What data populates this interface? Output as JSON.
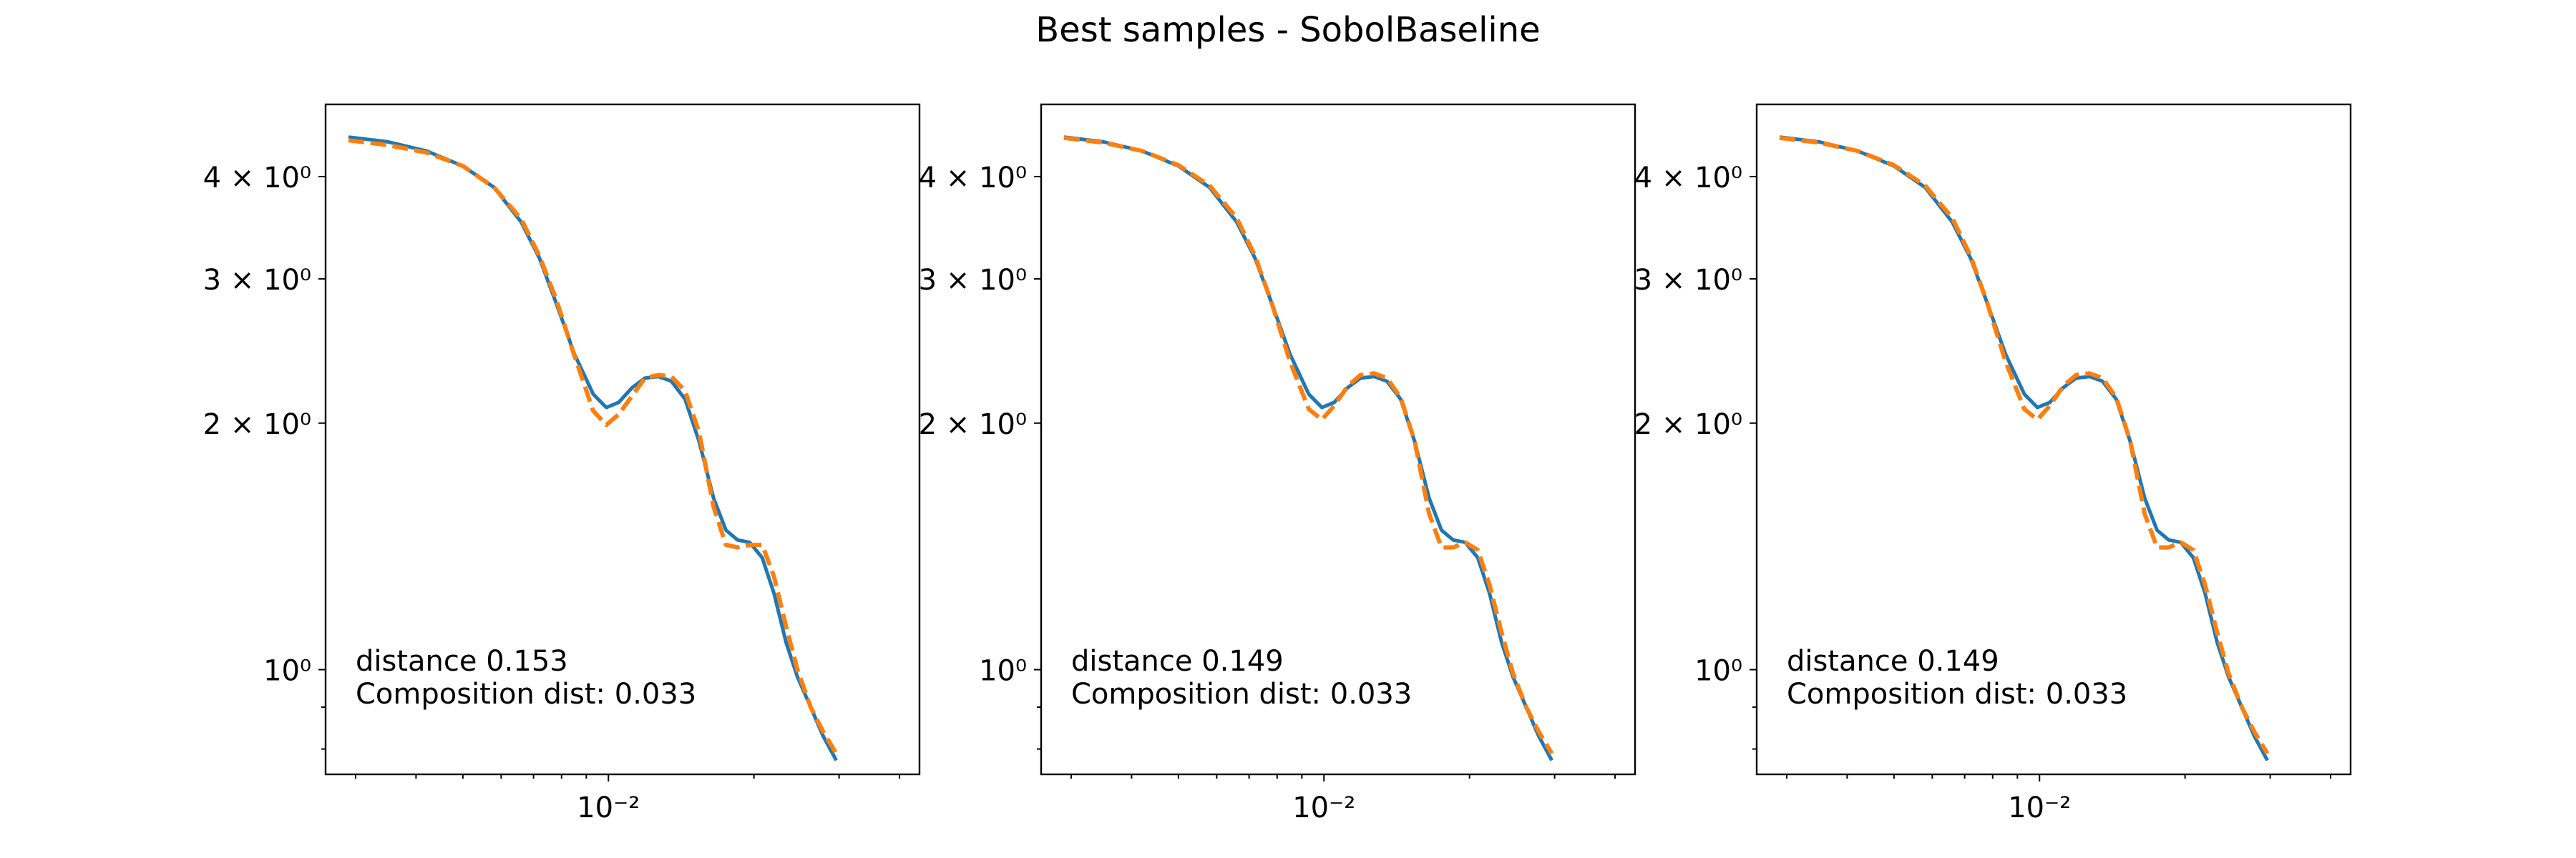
{
  "figure": {
    "title": "Best samples - SobolBaseline"
  },
  "chart_data": [
    {
      "type": "line",
      "xscale": "log",
      "yscale": "log",
      "xlim": [
        0.0026,
        0.044
      ],
      "ylim": [
        0.745,
        4.9
      ],
      "xticks_major": [
        {
          "value": 0.01,
          "label": "10⁻²"
        }
      ],
      "xticks_minor": [
        0.003,
        0.004,
        0.005,
        0.006,
        0.007,
        0.008,
        0.009,
        0.02,
        0.03,
        0.04
      ],
      "yticks": [
        {
          "value": 4,
          "label": "4 × 10⁰"
        },
        {
          "value": 3,
          "label": "3 × 10⁰"
        },
        {
          "value": 2,
          "label": "2 × 10⁰"
        },
        {
          "value": 1,
          "label": "10⁰"
        }
      ],
      "yticks_minor": [
        0.9,
        0.8
      ],
      "series": [
        {
          "style": "solid",
          "color": "#1f77b4",
          "points": [
            [
              0.0029,
              4.47
            ],
            [
              0.0035,
              4.41
            ],
            [
              0.0042,
              4.3
            ],
            [
              0.005,
              4.12
            ],
            [
              0.0058,
              3.88
            ],
            [
              0.0066,
              3.52
            ],
            [
              0.0072,
              3.18
            ],
            [
              0.0078,
              2.8
            ],
            [
              0.0085,
              2.43
            ],
            [
              0.0093,
              2.17
            ],
            [
              0.0099,
              2.09
            ],
            [
              0.0105,
              2.12
            ],
            [
              0.0112,
              2.21
            ],
            [
              0.0119,
              2.27
            ],
            [
              0.0127,
              2.28
            ],
            [
              0.0135,
              2.25
            ],
            [
              0.0144,
              2.14
            ],
            [
              0.0154,
              1.9
            ],
            [
              0.0165,
              1.62
            ],
            [
              0.0175,
              1.48
            ],
            [
              0.0185,
              1.44
            ],
            [
              0.0196,
              1.43
            ],
            [
              0.0208,
              1.37
            ],
            [
              0.022,
              1.24
            ],
            [
              0.0233,
              1.08
            ],
            [
              0.0246,
              0.98
            ],
            [
              0.0262,
              0.9
            ],
            [
              0.0278,
              0.83
            ],
            [
              0.0296,
              0.775
            ]
          ]
        },
        {
          "style": "dashed",
          "color": "#ff7f0e",
          "points": [
            [
              0.0029,
              4.43
            ],
            [
              0.0035,
              4.37
            ],
            [
              0.0042,
              4.28
            ],
            [
              0.005,
              4.12
            ],
            [
              0.0058,
              3.88
            ],
            [
              0.0066,
              3.55
            ],
            [
              0.0072,
              3.2
            ],
            [
              0.0078,
              2.83
            ],
            [
              0.0085,
              2.42
            ],
            [
              0.0093,
              2.07
            ],
            [
              0.0099,
              1.99
            ],
            [
              0.0105,
              2.05
            ],
            [
              0.0112,
              2.16
            ],
            [
              0.0119,
              2.27
            ],
            [
              0.0127,
              2.29
            ],
            [
              0.0135,
              2.28
            ],
            [
              0.0144,
              2.19
            ],
            [
              0.0154,
              1.95
            ],
            [
              0.0165,
              1.58
            ],
            [
              0.0175,
              1.42
            ],
            [
              0.0185,
              1.41
            ],
            [
              0.0196,
              1.42
            ],
            [
              0.0208,
              1.42
            ],
            [
              0.022,
              1.3
            ],
            [
              0.0233,
              1.13
            ],
            [
              0.0246,
              1.0
            ],
            [
              0.0262,
              0.9
            ],
            [
              0.0278,
              0.84
            ],
            [
              0.0296,
              0.79
            ]
          ]
        }
      ],
      "annotations": [
        "distance 0.153",
        "Composition dist: 0.033"
      ]
    },
    {
      "type": "line",
      "xscale": "log",
      "yscale": "log",
      "xlim": [
        0.0026,
        0.044
      ],
      "ylim": [
        0.745,
        4.9
      ],
      "xticks_major": [
        {
          "value": 0.01,
          "label": "10⁻²"
        }
      ],
      "xticks_minor": [
        0.003,
        0.004,
        0.005,
        0.006,
        0.007,
        0.008,
        0.009,
        0.02,
        0.03,
        0.04
      ],
      "yticks": [
        {
          "value": 4,
          "label": "4 × 10⁰"
        },
        {
          "value": 3,
          "label": "3 × 10⁰"
        },
        {
          "value": 2,
          "label": "2 × 10⁰"
        },
        {
          "value": 1,
          "label": "10⁰"
        }
      ],
      "yticks_minor": [
        0.9,
        0.8
      ],
      "series": [
        {
          "style": "solid",
          "color": "#1f77b4",
          "points": [
            [
              0.0029,
              4.47
            ],
            [
              0.0035,
              4.41
            ],
            [
              0.0042,
              4.3
            ],
            [
              0.005,
              4.12
            ],
            [
              0.0058,
              3.88
            ],
            [
              0.0066,
              3.52
            ],
            [
              0.0072,
              3.18
            ],
            [
              0.0078,
              2.8
            ],
            [
              0.0085,
              2.43
            ],
            [
              0.0093,
              2.17
            ],
            [
              0.0099,
              2.09
            ],
            [
              0.0105,
              2.12
            ],
            [
              0.0112,
              2.21
            ],
            [
              0.0119,
              2.27
            ],
            [
              0.0127,
              2.28
            ],
            [
              0.0135,
              2.25
            ],
            [
              0.0144,
              2.14
            ],
            [
              0.0154,
              1.9
            ],
            [
              0.0165,
              1.62
            ],
            [
              0.0175,
              1.48
            ],
            [
              0.0185,
              1.44
            ],
            [
              0.0196,
              1.43
            ],
            [
              0.0208,
              1.37
            ],
            [
              0.022,
              1.24
            ],
            [
              0.0233,
              1.08
            ],
            [
              0.0246,
              0.98
            ],
            [
              0.0262,
              0.9
            ],
            [
              0.0278,
              0.83
            ],
            [
              0.0296,
              0.775
            ]
          ]
        },
        {
          "style": "dashed",
          "color": "#ff7f0e",
          "points": [
            [
              0.0029,
              4.46
            ],
            [
              0.0035,
              4.4
            ],
            [
              0.0042,
              4.3
            ],
            [
              0.005,
              4.13
            ],
            [
              0.0058,
              3.9
            ],
            [
              0.0066,
              3.56
            ],
            [
              0.0072,
              3.2
            ],
            [
              0.0078,
              2.8
            ],
            [
              0.0085,
              2.38
            ],
            [
              0.0093,
              2.08
            ],
            [
              0.0099,
              2.02
            ],
            [
              0.0105,
              2.1
            ],
            [
              0.0112,
              2.22
            ],
            [
              0.0119,
              2.29
            ],
            [
              0.0127,
              2.3
            ],
            [
              0.0135,
              2.27
            ],
            [
              0.0144,
              2.15
            ],
            [
              0.0154,
              1.9
            ],
            [
              0.0165,
              1.55
            ],
            [
              0.0175,
              1.41
            ],
            [
              0.0185,
              1.41
            ],
            [
              0.0196,
              1.43
            ],
            [
              0.0208,
              1.4
            ],
            [
              0.022,
              1.27
            ],
            [
              0.0233,
              1.11
            ],
            [
              0.0246,
              0.99
            ],
            [
              0.0262,
              0.9
            ],
            [
              0.0278,
              0.84
            ],
            [
              0.0296,
              0.79
            ]
          ]
        }
      ],
      "annotations": [
        "distance 0.149",
        "Composition dist: 0.033"
      ]
    },
    {
      "type": "line",
      "xscale": "log",
      "yscale": "log",
      "xlim": [
        0.0026,
        0.044
      ],
      "ylim": [
        0.745,
        4.9
      ],
      "xticks_major": [
        {
          "value": 0.01,
          "label": "10⁻²"
        }
      ],
      "xticks_minor": [
        0.003,
        0.004,
        0.005,
        0.006,
        0.007,
        0.008,
        0.009,
        0.02,
        0.03,
        0.04
      ],
      "yticks": [
        {
          "value": 4,
          "label": "4 × 10⁰"
        },
        {
          "value": 3,
          "label": "3 × 10⁰"
        },
        {
          "value": 2,
          "label": "2 × 10⁰"
        },
        {
          "value": 1,
          "label": "10⁰"
        }
      ],
      "yticks_minor": [
        0.9,
        0.8
      ],
      "series": [
        {
          "style": "solid",
          "color": "#1f77b4",
          "points": [
            [
              0.0029,
              4.47
            ],
            [
              0.0035,
              4.41
            ],
            [
              0.0042,
              4.3
            ],
            [
              0.005,
              4.12
            ],
            [
              0.0058,
              3.88
            ],
            [
              0.0066,
              3.52
            ],
            [
              0.0072,
              3.18
            ],
            [
              0.0078,
              2.8
            ],
            [
              0.0085,
              2.43
            ],
            [
              0.0093,
              2.17
            ],
            [
              0.0099,
              2.09
            ],
            [
              0.0105,
              2.12
            ],
            [
              0.0112,
              2.21
            ],
            [
              0.0119,
              2.27
            ],
            [
              0.0127,
              2.28
            ],
            [
              0.0135,
              2.25
            ],
            [
              0.0144,
              2.14
            ],
            [
              0.0154,
              1.9
            ],
            [
              0.0165,
              1.62
            ],
            [
              0.0175,
              1.48
            ],
            [
              0.0185,
              1.44
            ],
            [
              0.0196,
              1.43
            ],
            [
              0.0208,
              1.37
            ],
            [
              0.022,
              1.24
            ],
            [
              0.0233,
              1.08
            ],
            [
              0.0246,
              0.98
            ],
            [
              0.0262,
              0.9
            ],
            [
              0.0278,
              0.83
            ],
            [
              0.0296,
              0.775
            ]
          ]
        },
        {
          "style": "dashed",
          "color": "#ff7f0e",
          "points": [
            [
              0.0029,
              4.46
            ],
            [
              0.0035,
              4.4
            ],
            [
              0.0042,
              4.3
            ],
            [
              0.005,
              4.13
            ],
            [
              0.0058,
              3.9
            ],
            [
              0.0066,
              3.56
            ],
            [
              0.0072,
              3.2
            ],
            [
              0.0078,
              2.8
            ],
            [
              0.0085,
              2.38
            ],
            [
              0.0093,
              2.08
            ],
            [
              0.0099,
              2.02
            ],
            [
              0.0105,
              2.1
            ],
            [
              0.0112,
              2.22
            ],
            [
              0.0119,
              2.29
            ],
            [
              0.0127,
              2.3
            ],
            [
              0.0135,
              2.27
            ],
            [
              0.0144,
              2.15
            ],
            [
              0.0154,
              1.9
            ],
            [
              0.0165,
              1.55
            ],
            [
              0.0175,
              1.41
            ],
            [
              0.0185,
              1.41
            ],
            [
              0.0196,
              1.43
            ],
            [
              0.0208,
              1.4
            ],
            [
              0.022,
              1.27
            ],
            [
              0.0233,
              1.11
            ],
            [
              0.0246,
              0.99
            ],
            [
              0.0262,
              0.9
            ],
            [
              0.0278,
              0.84
            ],
            [
              0.0296,
              0.79
            ]
          ]
        }
      ],
      "annotations": [
        "distance 0.149",
        "Composition dist: 0.033"
      ]
    }
  ]
}
